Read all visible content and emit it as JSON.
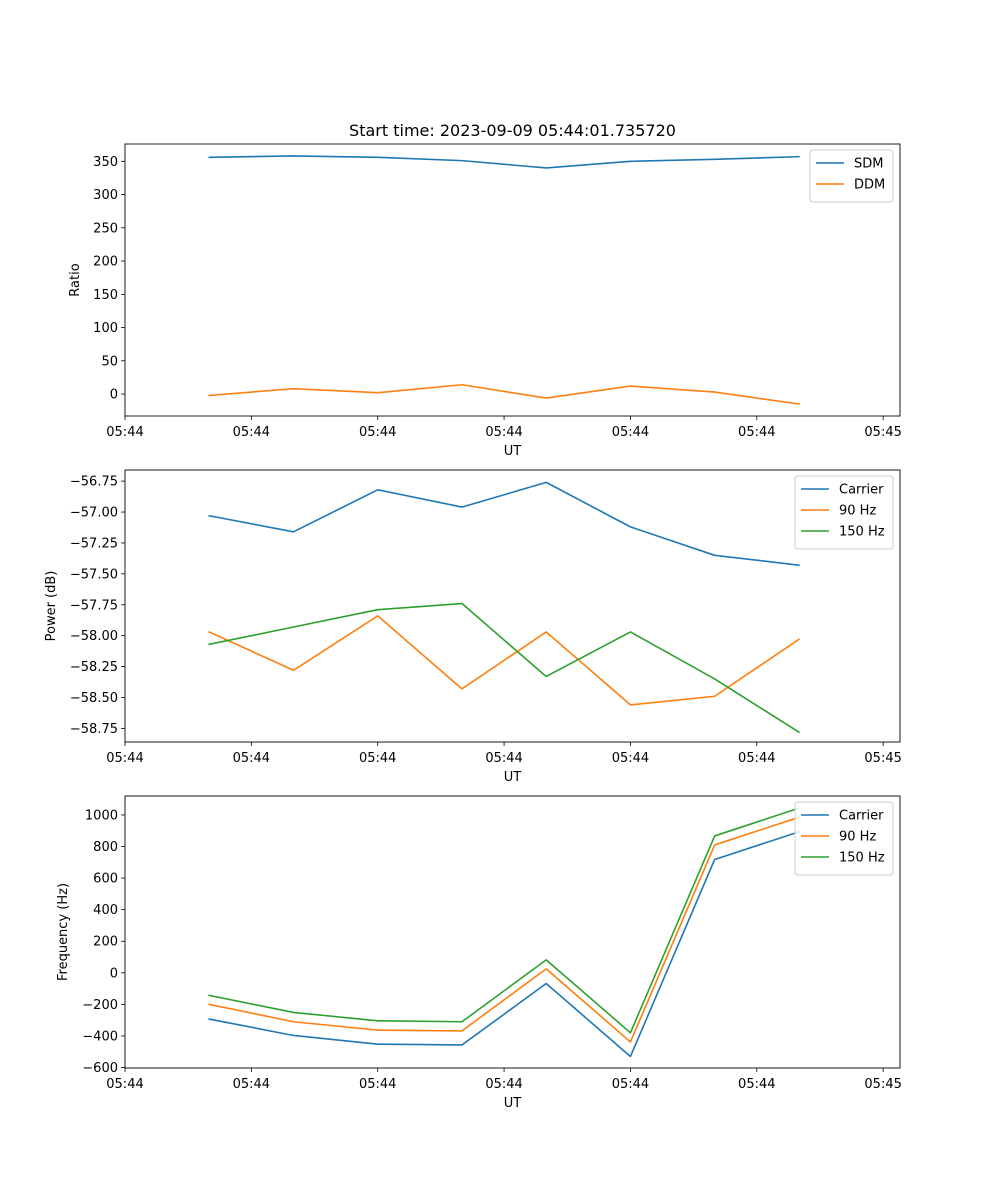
{
  "chart_data": [
    {
      "type": "line",
      "title": "Start time: 2023-09-09 05:44:01.735720",
      "xlabel": "UT",
      "ylabel": "Ratio",
      "x_tick_labels": [
        "05:44",
        "05:44",
        "05:44",
        "05:44",
        "05:44",
        "05:44",
        "05:45"
      ],
      "x": [
        1,
        2,
        3,
        4,
        5,
        6,
        7,
        8
      ],
      "xlim": [
        0,
        9.2
      ],
      "x_ticks": [
        0,
        1.5,
        3,
        4.5,
        6,
        7.5,
        9
      ],
      "ylim": [
        -33,
        376
      ],
      "y_ticks": [
        0,
        50,
        100,
        150,
        200,
        250,
        300,
        350
      ],
      "legend": "top-right",
      "series": [
        {
          "name": "SDM",
          "color": "#1f77b4",
          "values": [
            356,
            358,
            356,
            351,
            340,
            350,
            353,
            357
          ]
        },
        {
          "name": "DDM",
          "color": "#ff7f0e",
          "values": [
            -2,
            8,
            2,
            14,
            -6,
            12,
            3,
            -15
          ]
        }
      ]
    },
    {
      "type": "line",
      "title": "",
      "xlabel": "UT",
      "ylabel": "Power (dB)",
      "x_tick_labels": [
        "05:44",
        "05:44",
        "05:44",
        "05:44",
        "05:44",
        "05:44",
        "05:45"
      ],
      "x": [
        1,
        2,
        3,
        4,
        5,
        6,
        7,
        8
      ],
      "xlim": [
        0,
        9.2
      ],
      "x_ticks": [
        0,
        1.5,
        3,
        4.5,
        6,
        7.5,
        9
      ],
      "ylim": [
        -58.86,
        -56.66
      ],
      "y_ticks": [
        -56.75,
        -57.0,
        -57.25,
        -57.5,
        -57.75,
        -58.0,
        -58.25,
        -58.5,
        -58.75
      ],
      "y_tick_labels": [
        "−56.75",
        "−57.00",
        "−57.25",
        "−57.50",
        "−57.75",
        "−58.00",
        "−58.25",
        "−58.50",
        "−58.75"
      ],
      "legend": "top-right",
      "series": [
        {
          "name": "Carrier",
          "color": "#1f77b4",
          "values": [
            -57.03,
            -57.16,
            -56.82,
            -56.96,
            -56.76,
            -57.12,
            -57.35,
            -57.43
          ]
        },
        {
          "name": "90 Hz",
          "color": "#ff7f0e",
          "values": [
            -57.97,
            -58.28,
            -57.84,
            -58.43,
            -57.97,
            -58.56,
            -58.49,
            -58.03
          ]
        },
        {
          "name": "150 Hz",
          "color": "#2ca02c",
          "values": [
            -58.07,
            -57.93,
            -57.79,
            -57.74,
            -58.33,
            -57.97,
            -58.35,
            -58.78
          ]
        }
      ]
    },
    {
      "type": "line",
      "title": "",
      "xlabel": "UT",
      "ylabel": "Frequency (Hz)",
      "x_tick_labels": [
        "05:44",
        "05:44",
        "05:44",
        "05:44",
        "05:44",
        "05:44",
        "05:45"
      ],
      "x": [
        1,
        2,
        3,
        4,
        5,
        6,
        7,
        8
      ],
      "xlim": [
        0,
        9.2
      ],
      "x_ticks": [
        0,
        1.5,
        3,
        4.5,
        6,
        7.5,
        9
      ],
      "ylim": [
        -603,
        1120
      ],
      "y_ticks": [
        -600,
        -400,
        -200,
        0,
        200,
        400,
        600,
        800,
        1000
      ],
      "y_tick_labels": [
        "−600",
        "−400",
        "−200",
        "0",
        "200",
        "400",
        "600",
        "800",
        "1000"
      ],
      "legend": "top-right",
      "series": [
        {
          "name": "Carrier",
          "color": "#1f77b4",
          "values": [
            -293,
            -397,
            -452,
            -457,
            -68,
            -530,
            718,
            893
          ]
        },
        {
          "name": "90 Hz",
          "color": "#ff7f0e",
          "values": [
            -200,
            -310,
            -363,
            -368,
            25,
            -438,
            810,
            985
          ]
        },
        {
          "name": "150 Hz",
          "color": "#2ca02c",
          "values": [
            -143,
            -251,
            -304,
            -310,
            82,
            -380,
            867,
            1043
          ]
        }
      ]
    }
  ]
}
